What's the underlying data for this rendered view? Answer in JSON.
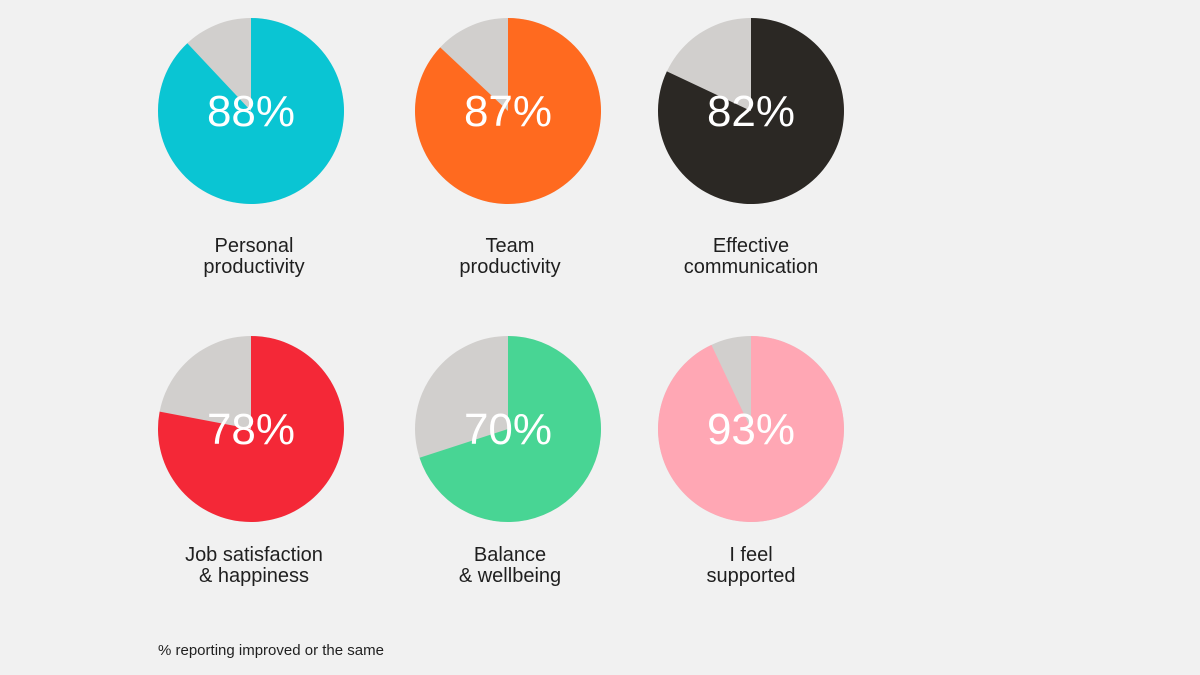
{
  "chart_data": {
    "type": "pie",
    "remainder_color": "#d1cfcd",
    "charts": [
      {
        "value": 88,
        "value_label": "88%",
        "label_line1": "Personal",
        "label_line2": "productivity",
        "color": "#0ac5d3",
        "text_color": "#ffffff"
      },
      {
        "value": 87,
        "value_label": "87%",
        "label_line1": "Team",
        "label_line2": "productivity",
        "color": "#ff6a1f",
        "text_color": "#ffffff"
      },
      {
        "value": 82,
        "value_label": "82%",
        "label_line1": "Effective",
        "label_line2": "communication",
        "color": "#2b2824",
        "text_color": "#ffffff"
      },
      {
        "value": 78,
        "value_label": "78%",
        "label_line1": "Job satisfaction",
        "label_line2": "& happiness",
        "color": "#f42837",
        "text_color": "#ffffff"
      },
      {
        "value": 70,
        "value_label": "70%",
        "label_line1": "Balance",
        "label_line2": "& wellbeing",
        "color": "#48d594",
        "text_color": "#ffffff"
      },
      {
        "value": 93,
        "value_label": "93%",
        "label_line1": "I feel",
        "label_line2": "supported",
        "color": "#ffa7b4",
        "text_color": "#ffffff"
      }
    ],
    "footnote": "% reporting improved or the same"
  }
}
